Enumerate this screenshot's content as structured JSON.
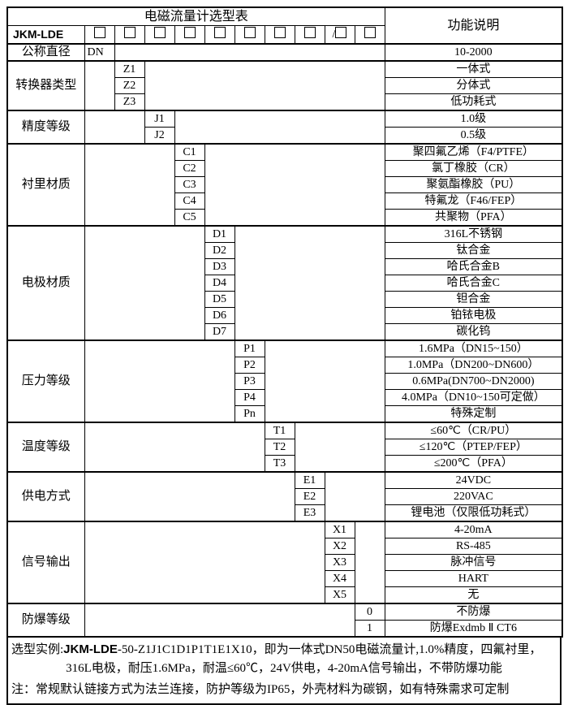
{
  "colors": {
    "border": "#000000",
    "background": "#ffffff",
    "text": "#000000"
  },
  "table": {
    "title": "电磁流量计选型表",
    "right_header": "功能说明",
    "model_prefix": "JKM-LDE",
    "checkbox_prefixes": [
      "",
      "",
      "",
      "",
      "",
      "",
      "",
      "",
      "/",
      ""
    ],
    "sections": [
      {
        "label": "公称直径",
        "col": 1,
        "align": "left",
        "codes": [
          "DN"
        ],
        "descs": [
          "10-2000"
        ]
      },
      {
        "label": "转换器类型",
        "col": 2,
        "codes": [
          "Z1",
          "Z2",
          "Z3"
        ],
        "descs": [
          "一体式",
          "分体式",
          "低功耗式"
        ]
      },
      {
        "label": "精度等级",
        "col": 3,
        "codes": [
          "J1",
          "J2"
        ],
        "descs": [
          "1.0级",
          "0.5级"
        ]
      },
      {
        "label": "衬里材质",
        "col": 4,
        "codes": [
          "C1",
          "C2",
          "C3",
          "C4",
          "C5"
        ],
        "descs": [
          "聚四氟乙烯（F4/PTFE）",
          "氯丁橡胶（CR）",
          "聚氨酯橡胶（PU）",
          "特氟龙（F46/FEP）",
          "共聚物（PFA）"
        ]
      },
      {
        "label": "电极材质",
        "col": 5,
        "codes": [
          "D1",
          "D2",
          "D3",
          "D4",
          "D5",
          "D6",
          "D7"
        ],
        "descs": [
          "316L不锈钢",
          "钛合金",
          "哈氏合金B",
          "哈氏合金C",
          "钽合金",
          "铂铱电极",
          "碳化钨"
        ]
      },
      {
        "label": "压力等级",
        "col": 6,
        "codes": [
          "P1",
          "P2",
          "P3",
          "P4",
          "Pn"
        ],
        "descs": [
          "1.6MPa（DN15~150）",
          "1.0MPa（DN200~DN600）",
          "0.6MPa(DN700~DN2000)",
          "4.0MPa（DN10~150可定做）",
          "特殊定制"
        ]
      },
      {
        "label": "温度等级",
        "col": 7,
        "codes": [
          "T1",
          "T2",
          "T3"
        ],
        "descs": [
          "≤60℃（CR/PU）",
          "≤120℃（PTEP/FEP）",
          "≤200℃（PFA）"
        ]
      },
      {
        "label": "供电方式",
        "col": 8,
        "codes": [
          "E1",
          "E2",
          "E3"
        ],
        "descs": [
          "24VDC",
          "220VAC",
          "锂电池（仅限低功耗式）"
        ]
      },
      {
        "label": "信号输出",
        "col": 9,
        "codes": [
          "X1",
          "X2",
          "X3",
          "X4",
          "X5"
        ],
        "descs": [
          "4-20mA",
          "RS-485",
          "脉冲信号",
          "HART",
          "无"
        ]
      },
      {
        "label": "防爆等级",
        "col": 10,
        "codes": [
          "0",
          "1"
        ],
        "descs": [
          "不防爆",
          "防爆Exdmb Ⅱ CT6"
        ]
      }
    ]
  },
  "footer": {
    "example_label": "选型实例:",
    "example_model": "JKM-LDE",
    "example_rest": "-50-Z1J1C1D1P1T1E1X10，即为一体式DN50电磁流量计,1.0%精度，四氟衬里，",
    "example_line2": "316L电极，耐压1.6MPa，耐温≤60℃，24V供电，4-20mA信号输出，不带防爆功能",
    "note": "注：常规默认链接方式为法兰连接，防护等级为IP65，外壳材料为碳钢，如有特殊需求可定制"
  }
}
